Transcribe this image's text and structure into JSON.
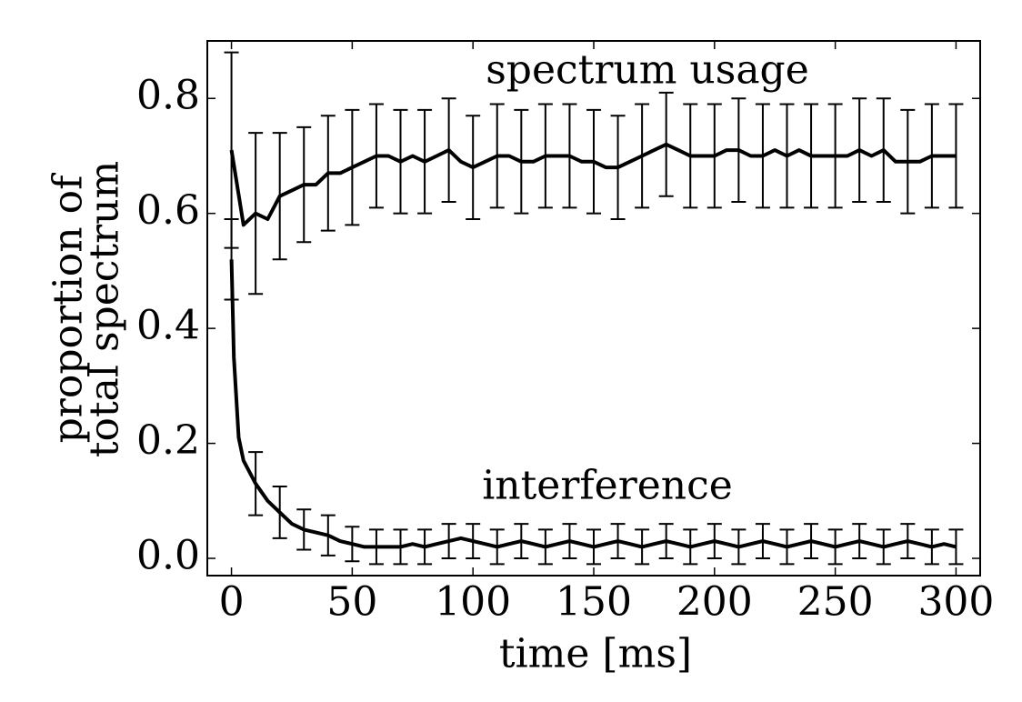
{
  "chart_data": {
    "type": "line",
    "xlabel": "time [ms]",
    "ylabel": [
      "proportion of",
      "total spectrum"
    ],
    "xlim": [
      -10,
      310
    ],
    "ylim": [
      -0.03,
      0.9
    ],
    "xticks": [
      0,
      50,
      100,
      150,
      200,
      250,
      300
    ],
    "yticks": [
      {
        "value": 0,
        "label": "0.0"
      },
      {
        "value": 0.2,
        "label": "0.2"
      },
      {
        "value": 0.4,
        "label": "0.4"
      },
      {
        "value": 0.6,
        "label": "0.6"
      },
      {
        "value": 0.8,
        "label": "0.8"
      }
    ],
    "grid": false,
    "series": [
      {
        "name": "spectrum usage",
        "color": "#000000",
        "x": [
          0,
          5,
          10,
          15,
          20,
          25,
          30,
          35,
          40,
          45,
          50,
          55,
          60,
          65,
          70,
          75,
          80,
          85,
          90,
          95,
          100,
          105,
          110,
          115,
          120,
          125,
          130,
          135,
          140,
          145,
          150,
          155,
          160,
          165,
          170,
          175,
          180,
          185,
          190,
          195,
          200,
          205,
          210,
          215,
          220,
          225,
          230,
          235,
          240,
          245,
          250,
          255,
          260,
          265,
          270,
          275,
          280,
          285,
          290,
          295,
          300
        ],
        "values": [
          0.71,
          0.58,
          0.6,
          0.59,
          0.63,
          0.64,
          0.65,
          0.65,
          0.67,
          0.67,
          0.68,
          0.69,
          0.7,
          0.7,
          0.69,
          0.7,
          0.69,
          0.7,
          0.71,
          0.69,
          0.68,
          0.69,
          0.7,
          0.7,
          0.69,
          0.69,
          0.7,
          0.7,
          0.7,
          0.69,
          0.69,
          0.68,
          0.68,
          0.69,
          0.7,
          0.71,
          0.72,
          0.71,
          0.7,
          0.7,
          0.7,
          0.71,
          0.71,
          0.7,
          0.7,
          0.71,
          0.7,
          0.71,
          0.7,
          0.7,
          0.7,
          0.7,
          0.71,
          0.7,
          0.71,
          0.69,
          0.69,
          0.69,
          0.7,
          0.7,
          0.7
        ],
        "errors": [
          0.17,
          null,
          0.14,
          null,
          0.11,
          null,
          0.1,
          null,
          0.1,
          null,
          0.1,
          null,
          0.09,
          null,
          0.09,
          null,
          0.09,
          null,
          0.09,
          null,
          0.09,
          null,
          0.09,
          null,
          0.09,
          null,
          0.09,
          null,
          0.09,
          null,
          0.09,
          null,
          0.09,
          null,
          0.09,
          null,
          0.09,
          null,
          0.09,
          null,
          0.09,
          null,
          0.09,
          null,
          0.09,
          null,
          0.09,
          null,
          0.09,
          null,
          0.09,
          null,
          0.09,
          null,
          0.09,
          null,
          0.09,
          null,
          0.09,
          null,
          0.09
        ]
      },
      {
        "name": "interference",
        "color": "#000000",
        "x": [
          0,
          1,
          3,
          5,
          10,
          15,
          20,
          25,
          30,
          35,
          40,
          45,
          50,
          55,
          60,
          65,
          70,
          75,
          80,
          85,
          90,
          95,
          100,
          105,
          110,
          115,
          120,
          125,
          130,
          135,
          140,
          145,
          150,
          155,
          160,
          165,
          170,
          175,
          180,
          185,
          190,
          195,
          200,
          205,
          210,
          215,
          220,
          225,
          230,
          235,
          240,
          245,
          250,
          255,
          260,
          265,
          270,
          275,
          280,
          285,
          290,
          295,
          300
        ],
        "values": [
          0.52,
          0.35,
          0.21,
          0.17,
          0.13,
          0.1,
          0.08,
          0.06,
          0.05,
          0.045,
          0.04,
          0.03,
          0.025,
          0.02,
          0.02,
          0.02,
          0.02,
          0.025,
          0.02,
          0.025,
          0.03,
          0.035,
          0.03,
          0.025,
          0.02,
          0.025,
          0.03,
          0.025,
          0.02,
          0.025,
          0.03,
          0.025,
          0.02,
          0.025,
          0.03,
          0.025,
          0.02,
          0.025,
          0.03,
          0.025,
          0.02,
          0.025,
          0.03,
          0.025,
          0.02,
          0.025,
          0.03,
          0.025,
          0.02,
          0.025,
          0.03,
          0.025,
          0.02,
          0.025,
          0.03,
          0.025,
          0.02,
          0.025,
          0.03,
          0.025,
          0.02,
          0.025,
          0.02
        ],
        "errors": [
          0.07,
          null,
          null,
          null,
          0.055,
          null,
          0.045,
          null,
          0.035,
          null,
          0.035,
          null,
          0.03,
          null,
          0.03,
          null,
          0.03,
          null,
          0.03,
          null,
          0.03,
          null,
          0.03,
          null,
          0.03,
          null,
          0.03,
          null,
          0.03,
          null,
          0.03,
          null,
          0.03,
          null,
          0.03,
          null,
          0.03,
          null,
          0.03,
          null,
          0.03,
          null,
          0.03,
          null,
          0.03,
          null,
          0.03,
          null,
          0.03,
          null,
          0.03,
          null,
          0.03,
          null,
          0.03,
          null,
          0.03,
          null,
          0.03,
          null,
          0.03,
          null,
          0.03
        ]
      }
    ]
  }
}
